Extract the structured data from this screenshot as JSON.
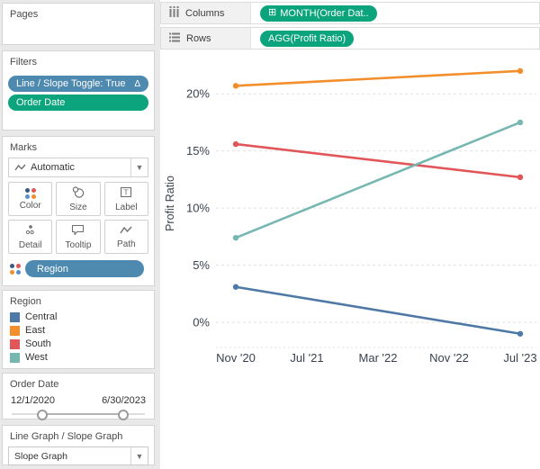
{
  "left_panel": {
    "pages": {
      "title": "Pages"
    },
    "filters": {
      "title": "Filters",
      "pills": [
        {
          "text": "Line / Slope Toggle: True",
          "suffix": "Δ",
          "color": "#4e89b0"
        },
        {
          "text": "Order Date",
          "color": "#0ba47c"
        }
      ]
    },
    "marks": {
      "title": "Marks",
      "mark_type": "Automatic",
      "buttons": [
        {
          "label": "Color"
        },
        {
          "label": "Size"
        },
        {
          "label": "Label"
        },
        {
          "label": "Detail"
        },
        {
          "label": "Tooltip"
        },
        {
          "label": "Path"
        }
      ],
      "pill": {
        "text": "Region"
      }
    },
    "legend": {
      "title": "Region",
      "items": [
        {
          "label": "Central",
          "color": "#4E79A7"
        },
        {
          "label": "East",
          "color": "#F28E2B"
        },
        {
          "label": "South",
          "color": "#E15759"
        },
        {
          "label": "West",
          "color": "#76B7B2"
        }
      ]
    },
    "order_date": {
      "title": "Order Date",
      "start": "12/1/2020",
      "end": "6/30/2023"
    },
    "parameter": {
      "title": "Line Graph / Slope Graph",
      "value": "Slope Graph"
    }
  },
  "shelves": {
    "columns": {
      "label": "Columns",
      "pill": {
        "text": "MONTH(Order Dat..",
        "icon": "plus-box",
        "color": "#0ba47c"
      }
    },
    "rows": {
      "label": "Rows",
      "pill": {
        "text": "AGG(Profit Ratio)",
        "color": "#0ba47c"
      }
    }
  },
  "chart_data": {
    "type": "line",
    "title": "",
    "ylabel": "Profit Ratio",
    "x": [
      "Nov '20",
      "Jul '23"
    ],
    "x_tick_labels": [
      "Nov '20",
      "Jul '21",
      "Mar '22",
      "Nov '22",
      "Jul '23"
    ],
    "y_ticks": [
      {
        "value": 0,
        "label": "0%"
      },
      {
        "value": 5,
        "label": "5%"
      },
      {
        "value": 10,
        "label": "10%"
      },
      {
        "value": 15,
        "label": "15%"
      },
      {
        "value": 20,
        "label": "20%"
      }
    ],
    "ylim": [
      -2.2,
      23.8
    ],
    "grid": "horizontal-dashed",
    "legend_position": "left-panel",
    "series": [
      {
        "name": "Central",
        "color": "#4E79A7",
        "values": [
          3.1,
          -1.0
        ]
      },
      {
        "name": "East",
        "color": "#F28E2B",
        "values": [
          20.7,
          22.0
        ]
      },
      {
        "name": "South",
        "color": "#E15759",
        "values": [
          15.6,
          12.7
        ]
      },
      {
        "name": "West",
        "color": "#76B7B2",
        "values": [
          7.4,
          17.5
        ]
      }
    ]
  }
}
